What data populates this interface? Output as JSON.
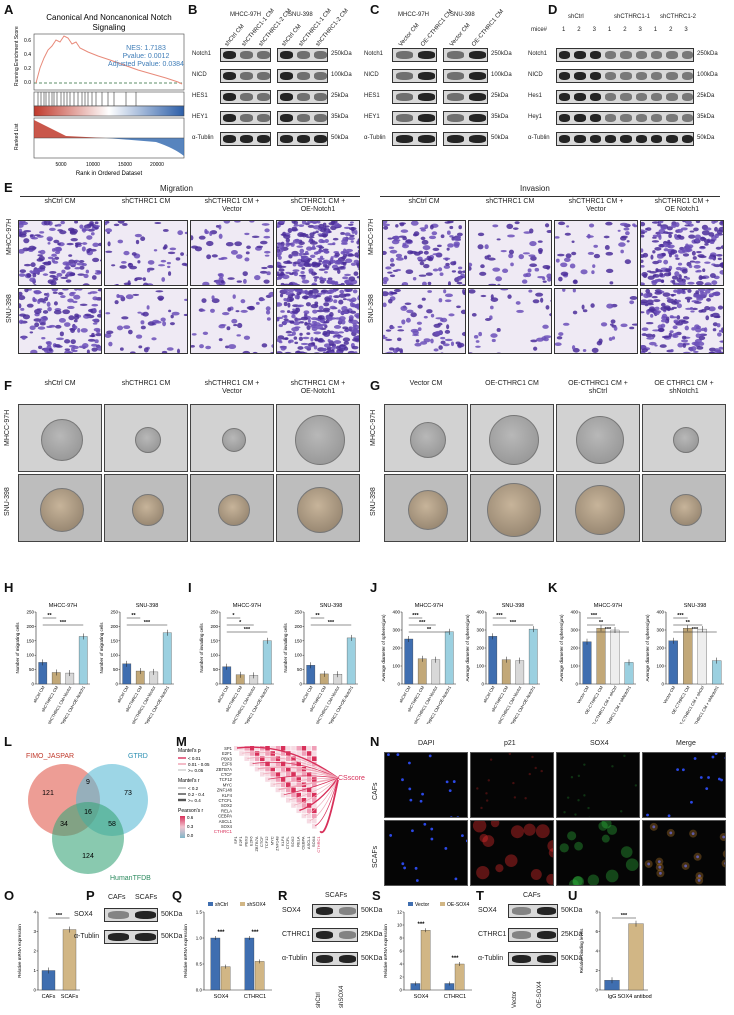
{
  "panel_letters": [
    "A",
    "B",
    "C",
    "D",
    "E",
    "F",
    "G",
    "H",
    "I",
    "J",
    "K",
    "L",
    "M",
    "N",
    "O",
    "P",
    "Q",
    "R",
    "S",
    "T",
    "U"
  ],
  "gsea": {
    "title_line1": "Canonical And Noncanonical Notch",
    "title_line2": "Signaling",
    "stats": [
      "NES: 1.7183",
      "Pvalue: 0.0012",
      "Adjusted Pvalue: 0.0384"
    ],
    "ylabel_top": "Running Enrichment Score",
    "ylabel_bottom": "Ranked List",
    "xlabel": "Rank in Ordered Dataset",
    "xticks": [
      "5000",
      "10000",
      "15000",
      "20000"
    ],
    "yticks_top": [
      "0.6",
      "0.4",
      "0.2",
      "0.0"
    ],
    "colors": {
      "curve": "#e88a7a",
      "hits": "#333333",
      "red": "#c0392b",
      "blue": "#2c5ea8"
    }
  },
  "blot_B": {
    "groups": [
      "MHCC-97H",
      "SNU-398"
    ],
    "lanes": [
      "shCtrl CM",
      "shCTHRC1-1 CM",
      "shCTHRC1-2 CM",
      "shCtrl CM",
      "shCTHRC1-1 CM",
      "shCTHRC1-2 CM"
    ],
    "proteins": [
      "Notch1",
      "NICD",
      "HES1",
      "HEY1",
      "α-Tublin"
    ],
    "sizes": [
      "250kDa",
      "100kDa",
      "25kDa",
      "35kDa",
      "50kDa"
    ]
  },
  "blot_C": {
    "groups": [
      "MHCC-97H",
      "SNU-398"
    ],
    "lanes": [
      "Vector CM",
      "OE-CTHRC1 CM",
      "Vector CM",
      "OE-CTHRC1 CM"
    ],
    "proteins": [
      "Notch1",
      "NICD",
      "HES1",
      "HEY1",
      "α-Tublin"
    ],
    "sizes": [
      "250kDa",
      "100kDa",
      "25kDa",
      "35kDa",
      "50kDa"
    ]
  },
  "blot_D": {
    "groups": [
      "shCtrl",
      "shCTHRC1-1",
      "shCTHRC1-2"
    ],
    "mice_label": "mice#",
    "mice": [
      "1",
      "2",
      "3",
      "1",
      "2",
      "3",
      "1",
      "2",
      "3"
    ],
    "proteins": [
      "Notch1",
      "NICD",
      "Hes1",
      "Hey1",
      "α-Tublin"
    ],
    "sizes": [
      "250kDa",
      "100kDa",
      "25kDa",
      "35kDa",
      "50kDa"
    ]
  },
  "panel_E": {
    "sections": [
      "Migration",
      "Invasion"
    ],
    "migration_cols": [
      "shCtrl CM",
      "shCTHRC1 CM",
      "shCTHRC1 CM +\nVector",
      "shCTHRC1 CM +\nOE-Notch1"
    ],
    "invasion_cols": [
      "shCtrl CM",
      "shCTHRC1 CM",
      "shCTHRC1 CM +\nVector",
      "shCTHRC1 CM +\nOE Notch1"
    ],
    "rows": [
      "MHCC-97H",
      "SNU-398"
    ]
  },
  "panel_F": {
    "cols": [
      "shCtrl CM",
      "shCTHRC1 CM",
      "shCTHRC1 CM +\nVector",
      "shCTHRC1 CM +\nOE-Notch1"
    ],
    "rows": [
      "MHCC-97H",
      "SNU-398"
    ]
  },
  "panel_G": {
    "cols": [
      "Vector CM",
      "OE-CTHRC1 CM",
      "OE-CTHRC1 CM +\nshCtrl",
      "OE CTHRC1 CM +\nshNotch1"
    ],
    "rows": [
      "MHCC-97H",
      "SNU-398"
    ]
  },
  "chart_data": [
    {
      "type": "bar",
      "panel": "H",
      "title": "MHCC-97H",
      "ylabel": "Number of migrating cells",
      "categories": [
        "shCtrl CM",
        "shCTHRC1 CM",
        "shCTHRC1 CM+Vector",
        "shCTHRC1 CM+OE-Notch1"
      ],
      "values": [
        75,
        40,
        38,
        165
      ],
      "ylim": [
        0,
        250
      ],
      "yticks": [
        "0",
        "50",
        "100",
        "150",
        "200",
        "250"
      ],
      "significance": [
        "**",
        "***"
      ],
      "colors": [
        "#3f6eb0",
        "#c2a878",
        "#d8d8d8",
        "#9bd0e0"
      ]
    },
    {
      "type": "bar",
      "panel": "H",
      "title": "SNU-398",
      "ylabel": "Number of migrating cells",
      "categories": [
        "shCtrl CM",
        "shCTHRC1 CM",
        "shCTHRC1 CM+Vector",
        "shCTHRC1 CM+OE-Notch1"
      ],
      "values": [
        70,
        45,
        42,
        178
      ],
      "ylim": [
        0,
        250
      ],
      "yticks": [
        "0",
        "50",
        "100",
        "150",
        "200",
        "250"
      ],
      "significance": [
        "**",
        "***"
      ],
      "colors": [
        "#3f6eb0",
        "#c2a878",
        "#d8d8d8",
        "#9bd0e0"
      ]
    },
    {
      "type": "bar",
      "panel": "I",
      "title": "MHCC-97H",
      "ylabel": "Number of invading cells",
      "categories": [
        "shCtrl CM",
        "shCTHRC1 CM",
        "shCTHRC1 CM+Vector",
        "shCTHRC1 CM+OE-Notch1"
      ],
      "values": [
        60,
        32,
        30,
        150
      ],
      "ylim": [
        0,
        250
      ],
      "yticks": [
        "0",
        "50",
        "100",
        "150",
        "200",
        "250"
      ],
      "significance": [
        "*",
        "*",
        "***"
      ],
      "colors": [
        "#3f6eb0",
        "#c2a878",
        "#d8d8d8",
        "#9bd0e0"
      ]
    },
    {
      "type": "bar",
      "panel": "I",
      "title": "SNU-398",
      "ylabel": "Number of invading cells",
      "categories": [
        "shCtrl CM",
        "shCTHRC1 CM",
        "shCTHRC1 CM+Vector",
        "shCTHRC1 CM+OE-Notch1"
      ],
      "values": [
        65,
        35,
        34,
        160
      ],
      "ylim": [
        0,
        250
      ],
      "yticks": [
        "0",
        "50",
        "100",
        "150",
        "200",
        "250"
      ],
      "significance": [
        "**",
        "***"
      ],
      "colors": [
        "#3f6eb0",
        "#c2a878",
        "#d8d8d8",
        "#9bd0e0"
      ]
    },
    {
      "type": "bar",
      "panel": "J",
      "title": "MHCC-97H",
      "ylabel": "Average diameter of spheres(μm)",
      "categories": [
        "shCtrl CM",
        "shCTHRC1 CM",
        "shCTHRC1 CM+Vector",
        "shCTHRC1 CM+OE-Notch1"
      ],
      "values": [
        250,
        140,
        135,
        290
      ],
      "ylim": [
        0,
        400
      ],
      "yticks": [
        "0",
        "100",
        "200",
        "300",
        "400"
      ],
      "significance": [
        "***",
        "***",
        "**"
      ],
      "colors": [
        "#3f6eb0",
        "#c2a878",
        "#d8d8d8",
        "#9bd0e0"
      ]
    },
    {
      "type": "bar",
      "panel": "J",
      "title": "SNU-398",
      "ylabel": "Average diameter of spheres(μm)",
      "categories": [
        "shCtrl CM",
        "shCTHRC1 CM",
        "shCTHRC1 CM+Vector",
        "shCTHRC1 CM+OE-Notch1"
      ],
      "values": [
        265,
        135,
        130,
        305
      ],
      "ylim": [
        0,
        400
      ],
      "yticks": [
        "0",
        "100",
        "200",
        "300",
        "400"
      ],
      "significance": [
        "***",
        "***"
      ],
      "colors": [
        "#3f6eb0",
        "#c2a878",
        "#d8d8d8",
        "#9bd0e0"
      ]
    },
    {
      "type": "bar",
      "panel": "K",
      "title": "MHCC-97H",
      "ylabel": "Average diameter of spheres(μm)",
      "categories": [
        "Vector CM",
        "OE-CTHRC1 CM",
        "OE-CTHRC1 CM + shCtrl",
        "OE-CTHRC1 CM + shNotch1"
      ],
      "values": [
        235,
        310,
        300,
        120
      ],
      "ylim": [
        0,
        400
      ],
      "yticks": [
        "0",
        "100",
        "200",
        "300",
        "400"
      ],
      "significance": [
        "***",
        "**",
        "***"
      ],
      "colors": [
        "#3f6eb0",
        "#c2a878",
        "#eeeeee",
        "#9bd0e0"
      ]
    },
    {
      "type": "bar",
      "panel": "K",
      "title": "SNU-398",
      "ylabel": "Average diameter of spheres(μm)",
      "categories": [
        "Vector CM",
        "OE-CTHRC1 CM",
        "OE-CTHRC1 CM + shCtrl",
        "OE-CTHRC1 CM + shNotch1"
      ],
      "values": [
        240,
        310,
        305,
        130
      ],
      "ylim": [
        0,
        400
      ],
      "yticks": [
        "0",
        "100",
        "200",
        "300",
        "400"
      ],
      "significance": [
        "***",
        "**",
        "***"
      ],
      "colors": [
        "#3f6eb0",
        "#c2a878",
        "#eeeeee",
        "#9bd0e0"
      ]
    },
    {
      "type": "bar",
      "panel": "O",
      "ylabel": "Relative mRNA expression",
      "categories": [
        "CAFs",
        "SCAFs"
      ],
      "values": [
        1.0,
        3.1
      ],
      "ylim": [
        0,
        4
      ],
      "yticks": [
        "0",
        "1",
        "2",
        "3",
        "4"
      ],
      "significance": [
        "***"
      ],
      "colors": [
        "#3f6eb0",
        "#d1b685"
      ]
    },
    {
      "type": "bar",
      "panel": "Q",
      "ylabel": "Relative mRNA expression",
      "categories": [
        "SOX4",
        "CTHRC1"
      ],
      "series": [
        {
          "name": "shCtrl",
          "values": [
            1.0,
            1.0
          ]
        },
        {
          "name": "shSOX4",
          "values": [
            0.45,
            0.55
          ]
        }
      ],
      "ylim": [
        0,
        1.5
      ],
      "yticks": [
        "0.0",
        "0.5",
        "1.0",
        "1.5"
      ],
      "significance": [
        "***",
        "***"
      ],
      "colors": [
        "#3f6eb0",
        "#d1b685"
      ]
    },
    {
      "type": "bar",
      "panel": "S",
      "ylabel": "Relative mRNA expression",
      "categories": [
        "SOX4",
        "CTHRC1"
      ],
      "series": [
        {
          "name": "Vector",
          "values": [
            1.0,
            1.0
          ]
        },
        {
          "name": "OE-SOX4",
          "values": [
            9.2,
            4.0
          ]
        }
      ],
      "ylim": [
        0,
        12
      ],
      "yticks": [
        "0",
        "2",
        "4",
        "6",
        "8",
        "10",
        "12"
      ],
      "significance": [
        "***",
        "***"
      ],
      "colors": [
        "#3f6eb0",
        "#d1b685"
      ]
    },
    {
      "type": "bar",
      "panel": "U",
      "ylabel": "Relative binding levels",
      "categories": [
        "IgG",
        "SOX4 antibody"
      ],
      "values": [
        1.0,
        6.8
      ],
      "ylim": [
        0,
        8
      ],
      "yticks": [
        "0",
        "2",
        "4",
        "6",
        "8"
      ],
      "significance": [
        "***"
      ],
      "colors": [
        "#3f6eb0",
        "#d1b685"
      ]
    }
  ],
  "venn": {
    "sets": [
      "FIMO_JASPAR",
      "GTRD",
      "HumanTFDB"
    ],
    "counts": [
      "121",
      "9",
      "73",
      "34",
      "16",
      "58",
      "124"
    ],
    "colors": [
      "#e57368",
      "#5bbad5",
      "#3aa57a"
    ]
  },
  "mantel": {
    "genes": [
      "SP1",
      "E2F1",
      "PBX3",
      "E2F6",
      "ZBTB7A",
      "CTCF",
      "TCF12",
      "MYC",
      "ZNF148",
      "KLF4",
      "CTCFL",
      "SOX2",
      "RELA",
      "CEBPA",
      "ASCL1",
      "SOX4",
      "CTHRC1"
    ],
    "target": "CSscore",
    "legend_p_title": "Mantel's p",
    "legend_p": [
      "< 0.01",
      "0.01 - 0.05",
      ">= 0.05"
    ],
    "legend_r_title": "Mantel's r",
    "legend_r": [
      "< 0.2",
      "0.2 - 0.4",
      ">= 0.4"
    ],
    "legend_pearson_title": "Pearson's r",
    "legend_pearson_ticks": [
      "0.6",
      "0.3",
      "0.0"
    ],
    "highlight_color": "#d8305a"
  },
  "panel_N": {
    "channels": [
      "DAPI",
      "p21",
      "SOX4",
      "Merge"
    ],
    "rows": [
      "CAFs",
      "SCAFs"
    ]
  },
  "blot_P": {
    "lanes": [
      "CAFs",
      "SCAFs"
    ],
    "proteins": [
      "SOX4",
      "α-Tublin"
    ],
    "sizes": [
      "50KDa",
      "50KDa"
    ]
  },
  "blot_R": {
    "title": "SCAFs",
    "lanes": [
      "shCtrl",
      "shSOX4"
    ],
    "proteins": [
      "SOX4",
      "CTHRC1",
      "α-Tublin"
    ],
    "sizes": [
      "50KDa",
      "25KDa",
      "50KDa"
    ]
  },
  "blot_T": {
    "title": "CAFs",
    "lanes": [
      "Vector",
      "OE-SOX4"
    ],
    "proteins": [
      "SOX4",
      "CTHRC1",
      "α-Tublin"
    ],
    "sizes": [
      "50KDa",
      "25KDa",
      "50KDa"
    ]
  }
}
